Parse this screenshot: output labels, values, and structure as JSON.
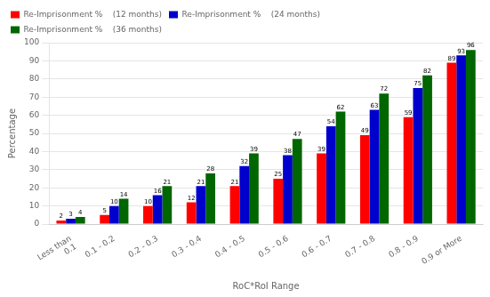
{
  "chart_data": {
    "type": "bar",
    "categories": [
      "Less than\n0.1",
      "0.1 - 0.2",
      "0.2 - 0.3",
      "0.3 - 0.4",
      "0.4 - 0.5",
      "0.5 - 0.6",
      "0.6 - 0.7",
      "0.7 - 0.8",
      "0.8 - 0.9",
      "0.9 or More"
    ],
    "series": [
      {
        "name": "Re-Imprisonment %    (12 months)",
        "color": "#FF0000",
        "values": [
          2,
          5,
          10,
          12,
          21,
          25,
          39,
          49,
          59,
          89
        ]
      },
      {
        "name": "Re-Imprisonment %    (24 months)",
        "color": "#0000CC",
        "values": [
          3,
          10,
          16,
          21,
          32,
          38,
          54,
          63,
          75,
          93
        ]
      },
      {
        "name": "Re-Imprisonment %    (36 months)",
        "color": "#006600",
        "values": [
          4,
          14,
          21,
          28,
          39,
          47,
          62,
          72,
          82,
          96
        ]
      }
    ],
    "xlabel": "RoC*RoI Range",
    "ylabel": "Percentage",
    "ylim": [
      0,
      100
    ],
    "yticks": [
      0,
      10,
      20,
      30,
      40,
      50,
      60,
      70,
      80,
      90,
      100
    ],
    "grid": true,
    "legend": "upper left",
    "data_labels": true
  }
}
